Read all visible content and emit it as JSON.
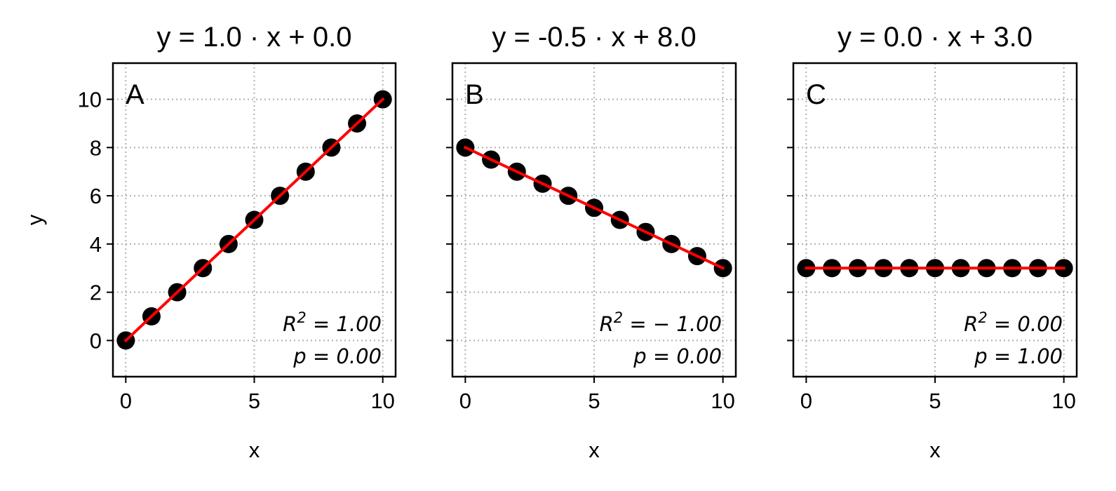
{
  "chart_data": [
    {
      "type": "scatter",
      "panel_label": "A",
      "title": "y = 1.0 · x + 0.0",
      "xlabel": "x",
      "ylabel": "y",
      "xlim": [
        -0.5,
        10.5
      ],
      "ylim": [
        -1.5,
        11.5
      ],
      "xticks": [
        "0",
        "5",
        "10"
      ],
      "yticks": [
        "0",
        "2",
        "4",
        "6",
        "8",
        "10"
      ],
      "grid": true,
      "x": [
        0,
        1,
        2,
        3,
        4,
        5,
        6,
        7,
        8,
        9,
        10
      ],
      "y": [
        0,
        1,
        2,
        3,
        4,
        5,
        6,
        7,
        8,
        9,
        10
      ],
      "fit_line": {
        "slope": 1.0,
        "intercept": 0.0,
        "color": "#ff0000"
      },
      "marker_color": "#000000",
      "r2_text": "R² = 1.00",
      "p_text": "p = 0.00"
    },
    {
      "type": "scatter",
      "panel_label": "B",
      "title": "y = -0.5 · x + 8.0",
      "xlabel": "x",
      "ylabel": "",
      "xlim": [
        -0.5,
        10.5
      ],
      "ylim": [
        -1.5,
        11.5
      ],
      "xticks": [
        "0",
        "5",
        "10"
      ],
      "yticks": [],
      "grid": true,
      "x": [
        0,
        1,
        2,
        3,
        4,
        5,
        6,
        7,
        8,
        9,
        10
      ],
      "y": [
        8,
        7.5,
        7,
        6.5,
        6,
        5.5,
        5,
        4.5,
        4,
        3.5,
        3
      ],
      "fit_line": {
        "slope": -0.5,
        "intercept": 8.0,
        "color": "#ff0000"
      },
      "marker_color": "#000000",
      "r2_text": "R² = − 1.00",
      "p_text": "p = 0.00"
    },
    {
      "type": "scatter",
      "panel_label": "C",
      "title": "y = 0.0 · x + 3.0",
      "xlabel": "x",
      "ylabel": "",
      "xlim": [
        -0.5,
        10.5
      ],
      "ylim": [
        -1.5,
        11.5
      ],
      "xticks": [
        "0",
        "5",
        "10"
      ],
      "yticks": [],
      "grid": true,
      "x": [
        0,
        1,
        2,
        3,
        4,
        5,
        6,
        7,
        8,
        9,
        10
      ],
      "y": [
        3,
        3,
        3,
        3,
        3,
        3,
        3,
        3,
        3,
        3,
        3
      ],
      "fit_line": {
        "slope": 0.0,
        "intercept": 3.0,
        "color": "#ff0000"
      },
      "marker_color": "#000000",
      "r2_text": "R² = 0.00",
      "p_text": "p = 1.00"
    }
  ]
}
